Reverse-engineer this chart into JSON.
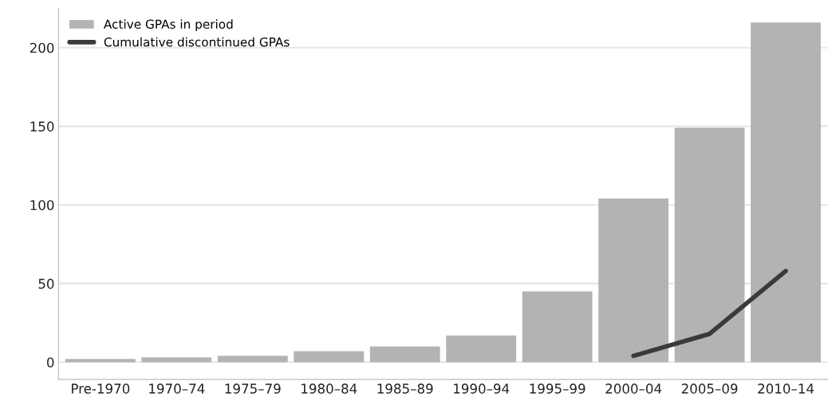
{
  "chart_data": {
    "type": "bar",
    "categories": [
      "Pre-1970",
      "1970–74",
      "1975–79",
      "1980–84",
      "1985–89",
      "1990–94",
      "1995–99",
      "2000–04",
      "2005–09",
      "2010–14"
    ],
    "series": [
      {
        "name": "Active GPAs in period",
        "color": "#b3b3b3",
        "values": [
          2,
          3,
          4,
          7,
          10,
          17,
          45,
          104,
          149,
          216
        ]
      },
      {
        "name": "Cumulative discontinued GPAs",
        "type": "line",
        "color": "#3a3a3a",
        "values": [
          null,
          null,
          null,
          null,
          null,
          null,
          null,
          4,
          18,
          58
        ]
      }
    ],
    "ylim": [
      -11,
      225
    ],
    "yticks": [
      0,
      50,
      100,
      150,
      200
    ],
    "grid": "y",
    "legend": "top left",
    "marker": "none"
  }
}
